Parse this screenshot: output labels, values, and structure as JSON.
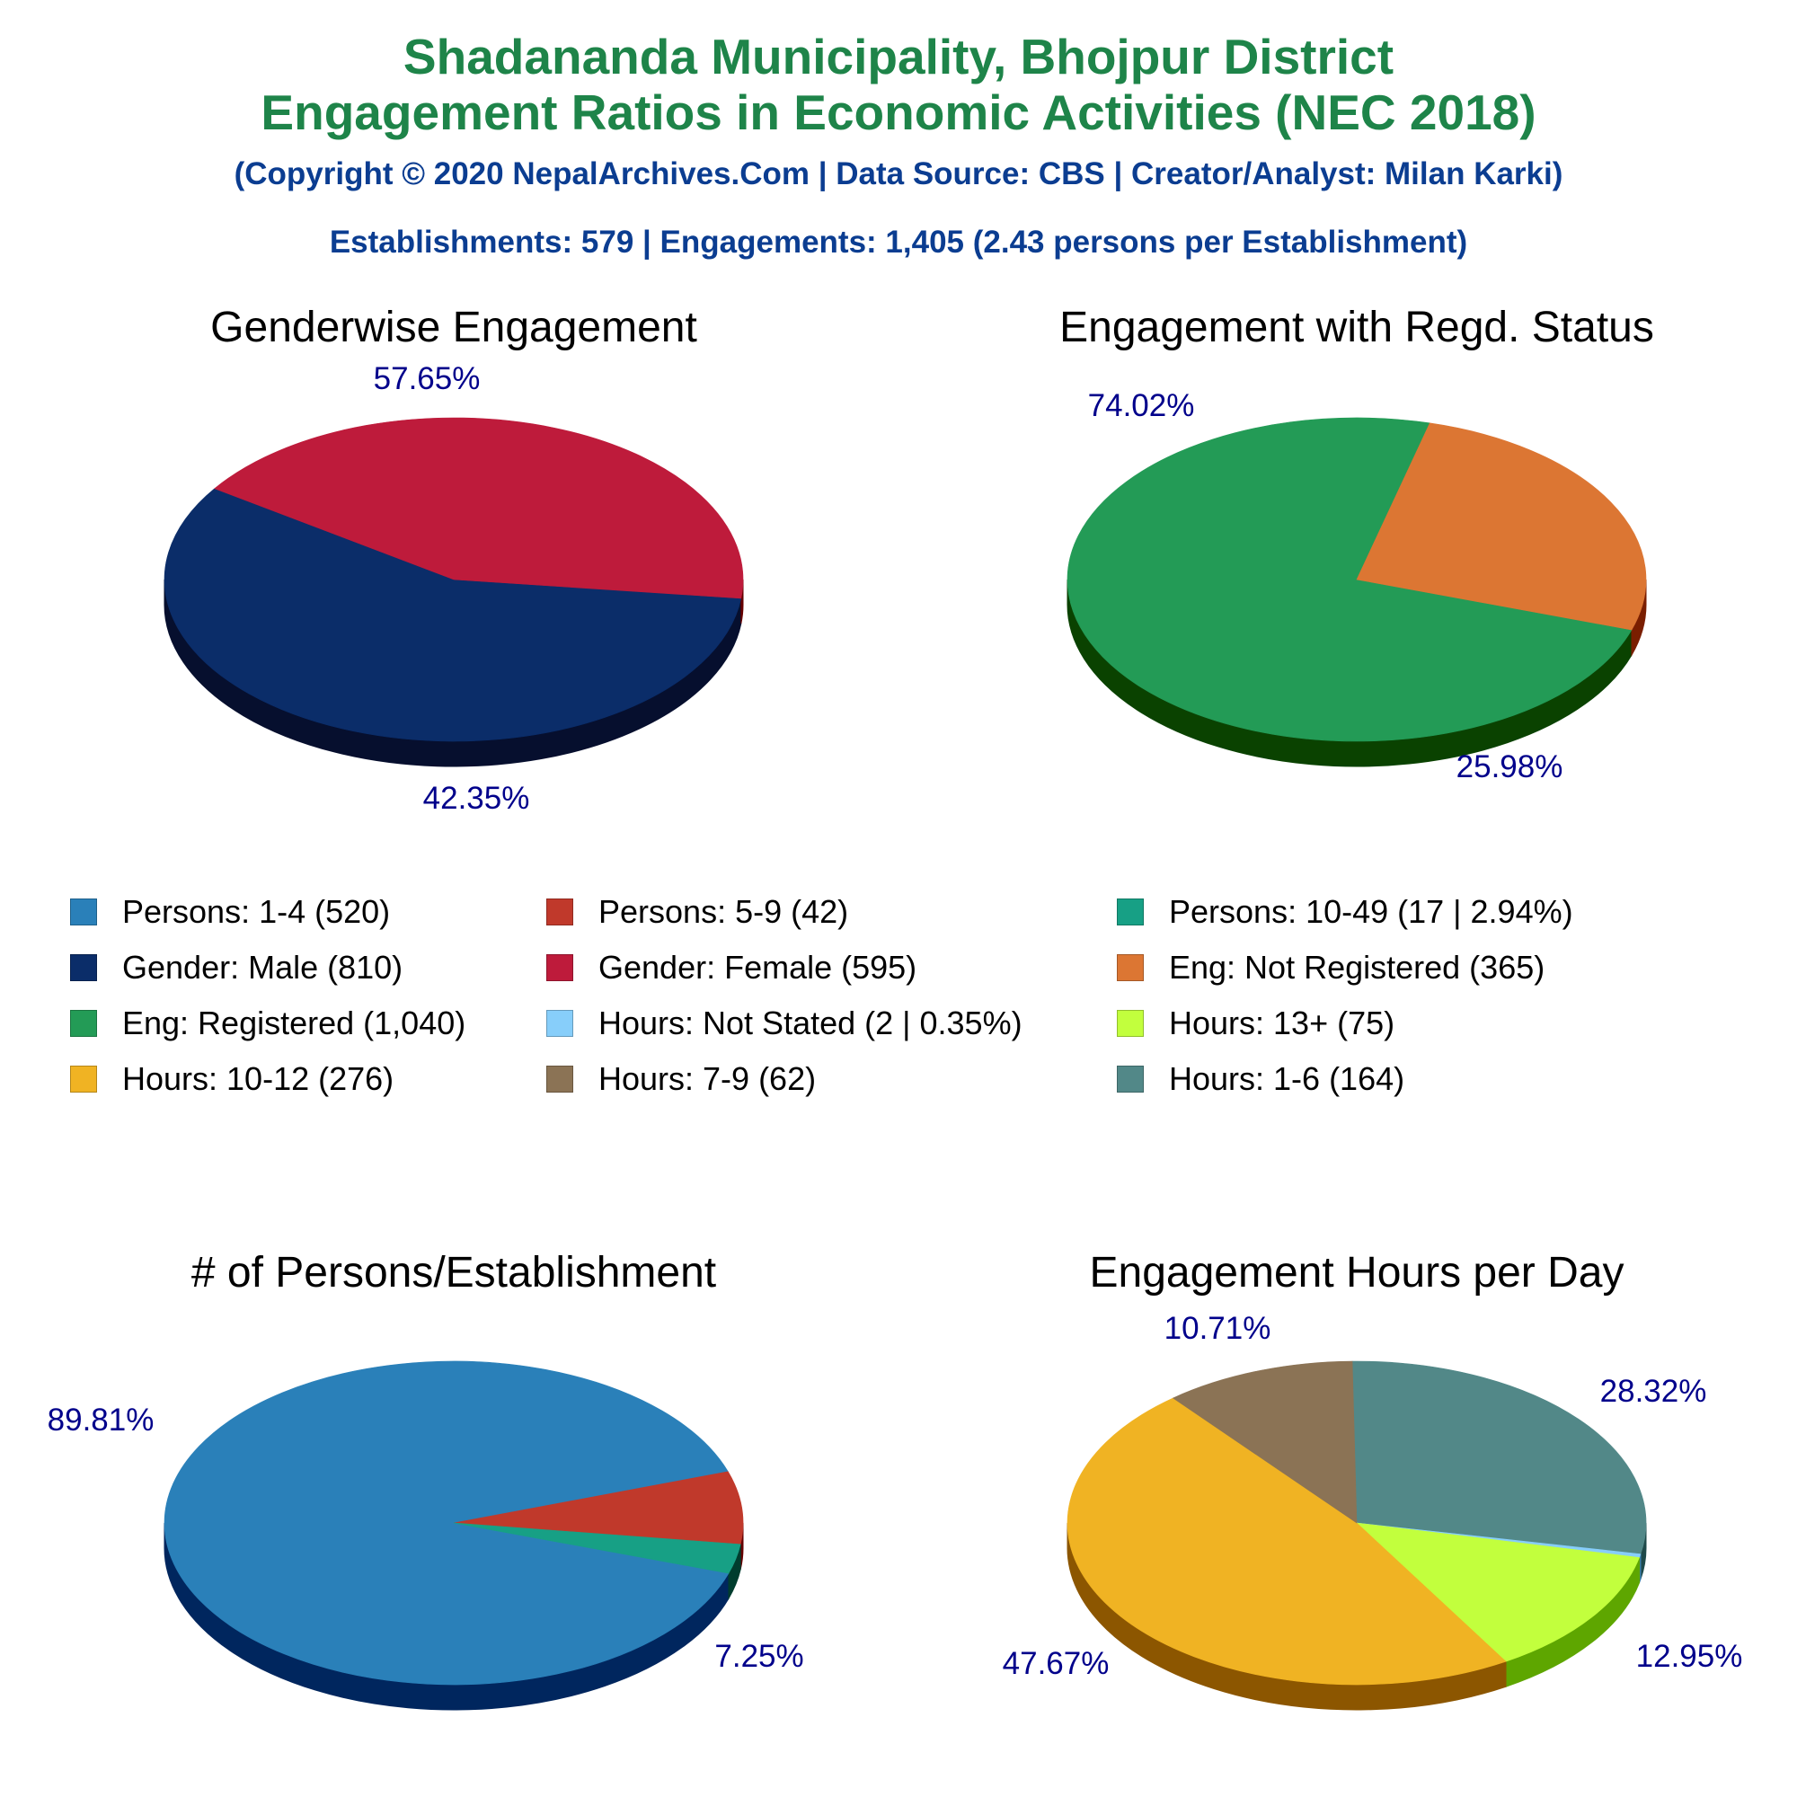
{
  "header": {
    "title_line1": "Shadananda Municipality, Bhojpur District",
    "title_line2": "Engagement Ratios in Economic Activities (NEC 2018)",
    "copyright": "(Copyright © 2020 NepalArchives.Com | Data Source: CBS | Creator/Analyst: Milan Karki)",
    "summary": "Establishments: 579 | Engagements: 1,405 (2.43 persons per Establishment)"
  },
  "colors": {
    "title": "#1e8449",
    "subtitle": "#0b3d91",
    "pct_label": "#00008b"
  },
  "legend": [
    {
      "label": "Persons: 1-4 (520)",
      "color": "#2a80b9"
    },
    {
      "label": "Persons: 5-9 (42)",
      "color": "#c0392b"
    },
    {
      "label": "Persons: 10-49 (17 | 2.94%)",
      "color": "#17a085"
    },
    {
      "label": "Gender: Male (810)",
      "color": "#0b2d69"
    },
    {
      "label": "Gender: Female (595)",
      "color": "#be1b3b"
    },
    {
      "label": "Eng: Not Registered (365)",
      "color": "#dc7633"
    },
    {
      "label": "Eng: Registered (1,040)",
      "color": "#239b56"
    },
    {
      "label": "Hours: Not Stated (2 | 0.35%)",
      "color": "#87cefa"
    },
    {
      "label": "Hours: 13+ (75)",
      "color": "#c2ff3d"
    },
    {
      "label": "Hours: 10-12 (276)",
      "color": "#f0b323"
    },
    {
      "label": "Hours: 7-9 (62)",
      "color": "#8b7355"
    },
    {
      "label": "Hours: 1-6 (164)",
      "color": "#528888"
    }
  ],
  "chart_data": [
    {
      "type": "pie",
      "title": "Genderwise Engagement",
      "slices": [
        {
          "name": "Gender: Male",
          "value": 810,
          "percent_label": "57.65%",
          "color": "#0b2d69",
          "side": "#060f2e"
        },
        {
          "name": "Gender: Female",
          "value": 595,
          "percent_label": "42.35%",
          "color": "#be1b3b",
          "side": "#660000"
        }
      ]
    },
    {
      "type": "pie",
      "title": "Engagement with Regd. Status",
      "slices": [
        {
          "name": "Eng: Registered",
          "value": 1040,
          "percent_label": "74.02%",
          "color": "#239b56",
          "side": "#0a4200"
        },
        {
          "name": "Eng: Not Registered",
          "value": 365,
          "percent_label": "25.98%",
          "color": "#dc7633",
          "side": "#7a1e00"
        }
      ]
    },
    {
      "type": "pie",
      "title": "# of Persons/Establishment",
      "slices": [
        {
          "name": "Persons: 1-4",
          "value": 520,
          "percent_label": "89.81%",
          "color": "#2a80b9",
          "side": "#00265e"
        },
        {
          "name": "Persons: 5-9",
          "value": 42,
          "percent_label": "7.25%",
          "color": "#c0392b",
          "side": "#660000"
        },
        {
          "name": "Persons: 10-49",
          "value": 17,
          "percent_label": "",
          "color": "#17a085",
          "side": "#003d2e"
        }
      ]
    },
    {
      "type": "pie",
      "title": "Engagement Hours per Day",
      "slices": [
        {
          "name": "Hours: 1-6",
          "value": 164,
          "percent_label": "28.32%",
          "color": "#528888",
          "side": "#1f4a4a"
        },
        {
          "name": "Hours: Not Stated",
          "value": 2,
          "percent_label": "",
          "color": "#87cefa",
          "side": "#3a7fb0"
        },
        {
          "name": "Hours: 13+",
          "value": 75,
          "percent_label": "12.95%",
          "color": "#c2ff3d",
          "side": "#5ea600"
        },
        {
          "name": "Hours: 10-12",
          "value": 276,
          "percent_label": "47.67%",
          "color": "#f0b323",
          "side": "#8c5600"
        },
        {
          "name": "Hours: 7-9",
          "value": 62,
          "percent_label": "10.71%",
          "color": "#8b7355",
          "side": "#4a3a24"
        }
      ]
    }
  ]
}
